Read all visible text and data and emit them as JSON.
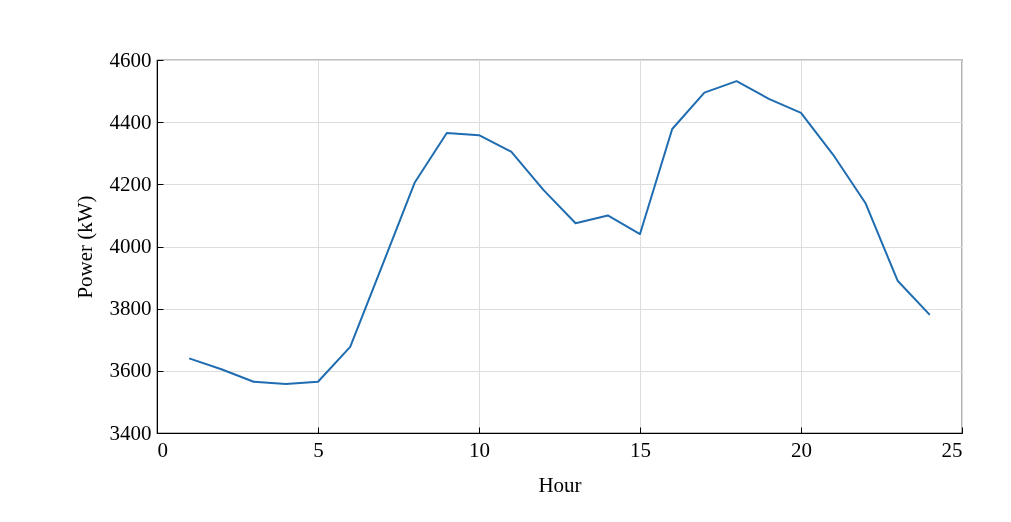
{
  "chart_data": {
    "type": "line",
    "xlabel": "Hour",
    "ylabel": "Power (kW)",
    "x": [
      1,
      2,
      3,
      4,
      5,
      6,
      7,
      8,
      9,
      10,
      11,
      12,
      13,
      14,
      15,
      16,
      17,
      18,
      19,
      20,
      21,
      22,
      23,
      24
    ],
    "series": [
      {
        "color": "#1f6db0",
        "values": [
          3640,
          3605,
          3565,
          3558,
          3565,
          3677,
          3940,
          4205,
          4365,
          4358,
          4305,
          4182,
          4075,
          4100,
          4040,
          4378,
          4495,
          4532,
          4475,
          4430,
          4295,
          4140,
          3890,
          3780
        ]
      }
    ],
    "xlim": [
      0,
      25
    ],
    "xticks": [
      0,
      5,
      10,
      15,
      20,
      25
    ],
    "ylim": [
      3400,
      4600
    ],
    "yticks": [
      3400,
      3600,
      3800,
      4000,
      4200,
      4400,
      4600
    ],
    "grid": true,
    "line_style": "solid"
  }
}
